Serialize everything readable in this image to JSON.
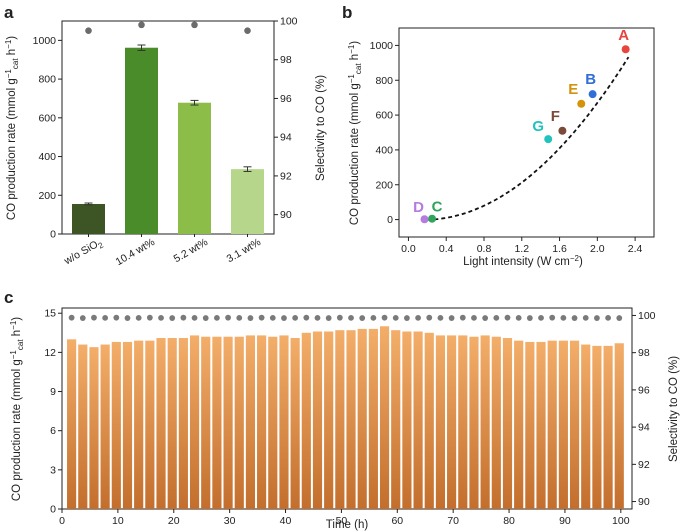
{
  "panels": {
    "a": "a",
    "b": "b",
    "c": "c"
  },
  "chart_data": [
    {
      "panel": "a",
      "type": "bar",
      "categories": [
        "w/o SiO2",
        "10.4 wt%",
        "5.2 wt%",
        "3.1 wt%"
      ],
      "category_labels": [
        {
          "main": "w/o SiO",
          "sub": "2"
        },
        {
          "main": "10.4 wt%",
          "sub": ""
        },
        {
          "main": "5.2 wt%",
          "sub": ""
        },
        {
          "main": "3.1 wt%",
          "sub": ""
        }
      ],
      "values": [
        155,
        962,
        678,
        335
      ],
      "errors": [
        5,
        14,
        12,
        12
      ],
      "bar_colors": [
        "#3d5524",
        "#4b8c2a",
        "#8cbd48",
        "#b6d68c"
      ],
      "selectivity": [
        99.5,
        99.8,
        99.8,
        99.5
      ],
      "selectivity_color": "#6b6b6b",
      "ylim": [
        0,
        1100
      ],
      "yticks": [
        0,
        200,
        400,
        600,
        800,
        1000
      ],
      "y2lim": [
        89,
        100
      ],
      "y2ticks": [
        90,
        92,
        94,
        96,
        98,
        100
      ],
      "ylabel": {
        "main": "CO production rate (mmol g",
        "sup1": "−1",
        "sub": "cat",
        "tail": " h",
        "sup2": "−1",
        "close": ")"
      },
      "y2label": "Selectivity to CO (%)"
    },
    {
      "panel": "b",
      "type": "scatter",
      "points": [
        {
          "label": "A",
          "x": 2.3,
          "y": 978,
          "color": "#e8453c"
        },
        {
          "label": "B",
          "x": 1.95,
          "y": 720,
          "color": "#2f6fd6"
        },
        {
          "label": "E",
          "x": 1.83,
          "y": 665,
          "color": "#d3940c"
        },
        {
          "label": "F",
          "x": 1.63,
          "y": 510,
          "color": "#7a4a3a"
        },
        {
          "label": "G",
          "x": 1.48,
          "y": 462,
          "color": "#20c4bd"
        },
        {
          "label": "C",
          "x": 0.25,
          "y": 5,
          "color": "#2fa55a"
        },
        {
          "label": "D",
          "x": 0.17,
          "y": 2,
          "color": "#b57ce0"
        }
      ],
      "fit": {
        "style": "dashed",
        "x_from": 0.2,
        "x_to": 2.33,
        "a": 198.9,
        "b": -64.8,
        "c": 4.1
      },
      "xlim": [
        -0.1,
        2.6
      ],
      "xticks": [
        0.0,
        0.4,
        0.8,
        1.2,
        1.6,
        2.0,
        2.4
      ],
      "xtick_labels": [
        "0.0",
        "0.4",
        "0.8",
        "1.2",
        "1.6",
        "2.0",
        "2.4"
      ],
      "ylim": [
        -100,
        1100
      ],
      "yticks": [
        0,
        200,
        400,
        600,
        800,
        1000
      ],
      "xlabel": {
        "main": "Light intensity (W cm",
        "sup": "−2",
        "close": ")"
      },
      "ylabel": {
        "main": "CO production rate (mmol g",
        "sup1": "−1",
        "sub": "cat",
        "tail": " h",
        "sup2": "−1",
        "close": ")"
      }
    },
    {
      "panel": "c",
      "type": "bar",
      "x": [
        1,
        2,
        3,
        4,
        5,
        6,
        7,
        8,
        9,
        10,
        11,
        12,
        13,
        14,
        15,
        16,
        17,
        18,
        19,
        20,
        21,
        22,
        23,
        24,
        25,
        26,
        27,
        28,
        29,
        30,
        31,
        32,
        33,
        34,
        35,
        36,
        37,
        38,
        39,
        40,
        41,
        42,
        43,
        44,
        45,
        46,
        47,
        48,
        49,
        50,
        51,
        52,
        53,
        54,
        55,
        56,
        57,
        58,
        59,
        60,
        61,
        62,
        63,
        64,
        65,
        66,
        67,
        68,
        69,
        70,
        71,
        72,
        73,
        74,
        75,
        76,
        77,
        78,
        79,
        80,
        81,
        82,
        83,
        84,
        85,
        86,
        87,
        88,
        89,
        90,
        91,
        92,
        93,
        94,
        95,
        96,
        97,
        98,
        99,
        100
      ],
      "values": [
        13.0,
        13.0,
        12.6,
        12.6,
        12.4,
        12.4,
        12.6,
        12.6,
        12.8,
        12.8,
        12.8,
        12.8,
        12.9,
        12.9,
        12.9,
        12.9,
        13.1,
        13.1,
        13.1,
        13.1,
        13.1,
        13.1,
        13.3,
        13.3,
        13.2,
        13.2,
        13.2,
        13.2,
        13.2,
        13.2,
        13.2,
        13.2,
        13.3,
        13.3,
        13.3,
        13.3,
        13.2,
        13.2,
        13.3,
        13.3,
        13.1,
        13.1,
        13.5,
        13.5,
        13.6,
        13.6,
        13.6,
        13.6,
        13.7,
        13.7,
        13.7,
        13.7,
        13.8,
        13.8,
        13.8,
        13.8,
        14.0,
        14.0,
        13.7,
        13.7,
        13.6,
        13.6,
        13.6,
        13.6,
        13.5,
        13.5,
        13.3,
        13.3,
        13.3,
        13.3,
        13.3,
        13.3,
        13.2,
        13.2,
        13.3,
        13.3,
        13.2,
        13.2,
        13.1,
        13.1,
        12.9,
        12.9,
        12.8,
        12.8,
        12.8,
        12.8,
        12.9,
        12.9,
        12.9,
        12.9,
        12.9,
        12.9,
        12.6,
        12.6,
        12.5,
        12.5,
        12.5,
        12.5,
        12.7,
        12.7
      ],
      "bar_color_top": "#f3ae6a",
      "bar_color_bottom": "#c36e2c",
      "selectivity": [
        99.88,
        99.88,
        99.86,
        99.86,
        99.88,
        99.88,
        99.87,
        99.87,
        99.88,
        99.88,
        99.86,
        99.86,
        99.87,
        99.87,
        99.88,
        99.88,
        99.87,
        99.87,
        99.86,
        99.86,
        99.88,
        99.88,
        99.87,
        99.87,
        99.86,
        99.86,
        99.87,
        99.87,
        99.88,
        99.88,
        99.87,
        99.87,
        99.86,
        99.86,
        99.88,
        99.88,
        99.87,
        99.87,
        99.86,
        99.86,
        99.87,
        99.87,
        99.88,
        99.88,
        99.87,
        99.87,
        99.86,
        99.86,
        99.88,
        99.88,
        99.87,
        99.87,
        99.86,
        99.86,
        99.87,
        99.87,
        99.88,
        99.88,
        99.87,
        99.87,
        99.86,
        99.86,
        99.87,
        99.87,
        99.88,
        99.88,
        99.87,
        99.87,
        99.86,
        99.86,
        99.88,
        99.88,
        99.87,
        99.87,
        99.86,
        99.86,
        99.87,
        99.87,
        99.88,
        99.88,
        99.87,
        99.87,
        99.86,
        99.86,
        99.87,
        99.87,
        99.88,
        99.88,
        99.87,
        99.87,
        99.86,
        99.86,
        99.87,
        99.87,
        99.86,
        99.86,
        99.87,
        99.87,
        99.86,
        99.86
      ],
      "selectivity_color": "#7a7a7a",
      "xlim": [
        0,
        102
      ],
      "xticks": [
        0,
        10,
        20,
        30,
        40,
        50,
        60,
        70,
        80,
        90,
        100
      ],
      "ylim": [
        0,
        15.4
      ],
      "yticks": [
        0,
        3,
        6,
        9,
        12,
        15
      ],
      "y2lim": [
        89.6,
        100.4
      ],
      "y2ticks": [
        90,
        92,
        94,
        96,
        98,
        100
      ],
      "xlabel": "Time (h)",
      "ylabel": {
        "main": "CO production rate (mmol g",
        "sup1": "−1",
        "sub": "cat",
        "tail": " h",
        "sup2": "−1",
        "close": ")"
      },
      "y2label": "Selectivity to CO (%)"
    }
  ]
}
